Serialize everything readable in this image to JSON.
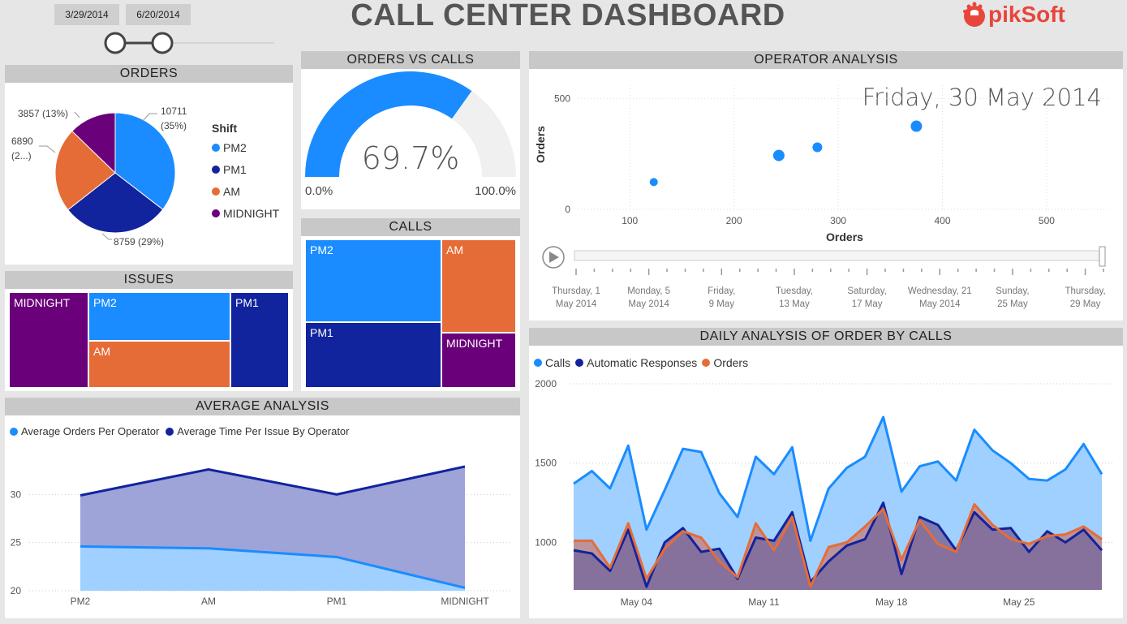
{
  "header": {
    "title": "CALL CENTER DASHBOARD",
    "start_date": "3/29/2014",
    "end_date": "6/20/2014",
    "logo_text": "pikSoft",
    "range": [
      0,
      0.25
    ]
  },
  "colors": {
    "pm2": "#1a8cff",
    "pm1": "#12239e",
    "am": "#e66c37",
    "midnight": "#6b007b",
    "gray": "#f0f0f0"
  },
  "orders": {
    "title": "ORDERS",
    "legend_title": "Shift",
    "chart_data": {
      "type": "pie",
      "slices": [
        {
          "name": "PM2",
          "value": 10711,
          "label_value": "10711",
          "label_pct": "(35%)"
        },
        {
          "name": "PM1",
          "value": 8759,
          "label": "8759 (29%)"
        },
        {
          "name": "AM",
          "value": 6890,
          "label_value": "6890",
          "label_pct": "(2...)"
        },
        {
          "name": "MIDNIGHT",
          "value": 3857,
          "label": "3857 (13%)"
        }
      ]
    }
  },
  "orders_vs_calls": {
    "title": "ORDERS VS CALLS",
    "chart_data": {
      "type": "gauge",
      "value": 69.7,
      "min": 0,
      "max": 100
    },
    "value_label": "69.7%",
    "min_label": "0.0%",
    "max_label": "100.0%"
  },
  "calls": {
    "title": "CALLS",
    "chart_data": {
      "type": "treemap",
      "items": [
        "PM2",
        "AM",
        "PM1",
        "MIDNIGHT"
      ]
    }
  },
  "issues": {
    "title": "ISSUES",
    "chart_data": {
      "type": "treemap",
      "items": [
        "MIDNIGHT",
        "PM2",
        "AM",
        "PM1"
      ]
    }
  },
  "operator": {
    "title": "OPERATOR ANALYSIS",
    "date_label": "Friday, 30 May 2014",
    "chart_data": {
      "type": "scatter",
      "xlabel": "Orders",
      "ylabel": "Orders",
      "xlim": [
        50,
        560
      ],
      "ylim": [
        0,
        560
      ],
      "xticks": [
        100,
        200,
        300,
        400,
        500
      ],
      "yticks": [
        0,
        500
      ],
      "points": [
        {
          "x": 123,
          "y": 123,
          "r": 5
        },
        {
          "x": 243,
          "y": 243,
          "r": 7
        },
        {
          "x": 280,
          "y": 280,
          "r": 6
        },
        {
          "x": 375,
          "y": 375,
          "r": 7
        }
      ]
    },
    "timeline_labels": [
      [
        "Thursday, 1",
        "May 2014"
      ],
      [
        "Monday, 5",
        "May 2014"
      ],
      [
        "Friday,",
        "9 May"
      ],
      [
        "Tuesday,",
        "13 May"
      ],
      [
        "Saturday,",
        "17 May"
      ],
      [
        "Wednesday, 21",
        "May 2014"
      ],
      [
        "Sunday,",
        "25 May"
      ],
      [
        "Thursday,",
        "29 May"
      ]
    ]
  },
  "average": {
    "title": "AVERAGE ANALYSIS",
    "chart_data": {
      "type": "area",
      "categories": [
        "PM2",
        "AM",
        "PM1",
        "MIDNIGHT"
      ],
      "ylim": [
        20,
        35
      ],
      "yticks": [
        20,
        25,
        30
      ],
      "series": [
        {
          "name": "Average Orders Per Operator",
          "values": [
            24.6,
            24.4,
            23.5,
            20.3
          ]
        },
        {
          "name": "Average Time Per Issue By Operator",
          "values": [
            29.9,
            32.6,
            30.0,
            32.9
          ]
        }
      ]
    }
  },
  "daily": {
    "title": "DAILY ANALYSIS OF ORDER BY CALLS",
    "chart_data": {
      "type": "area",
      "x_start": "2014-05-01",
      "x_end": "2014-05-31",
      "xticks": [
        "May 04",
        "May 11",
        "May 18",
        "May 25"
      ],
      "ylim": [
        700,
        2000
      ],
      "yticks": [
        1000,
        1500,
        2000
      ],
      "series": [
        {
          "name": "Calls",
          "values": [
            1370,
            1450,
            1340,
            1610,
            1080,
            1330,
            1590,
            1570,
            1310,
            1160,
            1540,
            1430,
            1600,
            1010,
            1340,
            1470,
            1540,
            1790,
            1320,
            1480,
            1510,
            1390,
            1710,
            1580,
            1500,
            1400,
            1390,
            1460,
            1620,
            1430
          ]
        },
        {
          "name": "Automatic Responses",
          "values": [
            950,
            930,
            820,
            1080,
            720,
            1000,
            1090,
            940,
            960,
            770,
            1030,
            1010,
            1190,
            750,
            880,
            980,
            1020,
            1250,
            800,
            1160,
            1110,
            950,
            1190,
            1080,
            1090,
            940,
            1070,
            1000,
            1080,
            950
          ]
        },
        {
          "name": "Orders",
          "values": [
            1010,
            1010,
            840,
            1120,
            770,
            960,
            1070,
            1030,
            880,
            780,
            1120,
            950,
            1160,
            720,
            970,
            1000,
            1100,
            1210,
            890,
            1140,
            990,
            940,
            1240,
            1110,
            1020,
            990,
            1040,
            1050,
            1100,
            1020
          ]
        }
      ]
    }
  }
}
